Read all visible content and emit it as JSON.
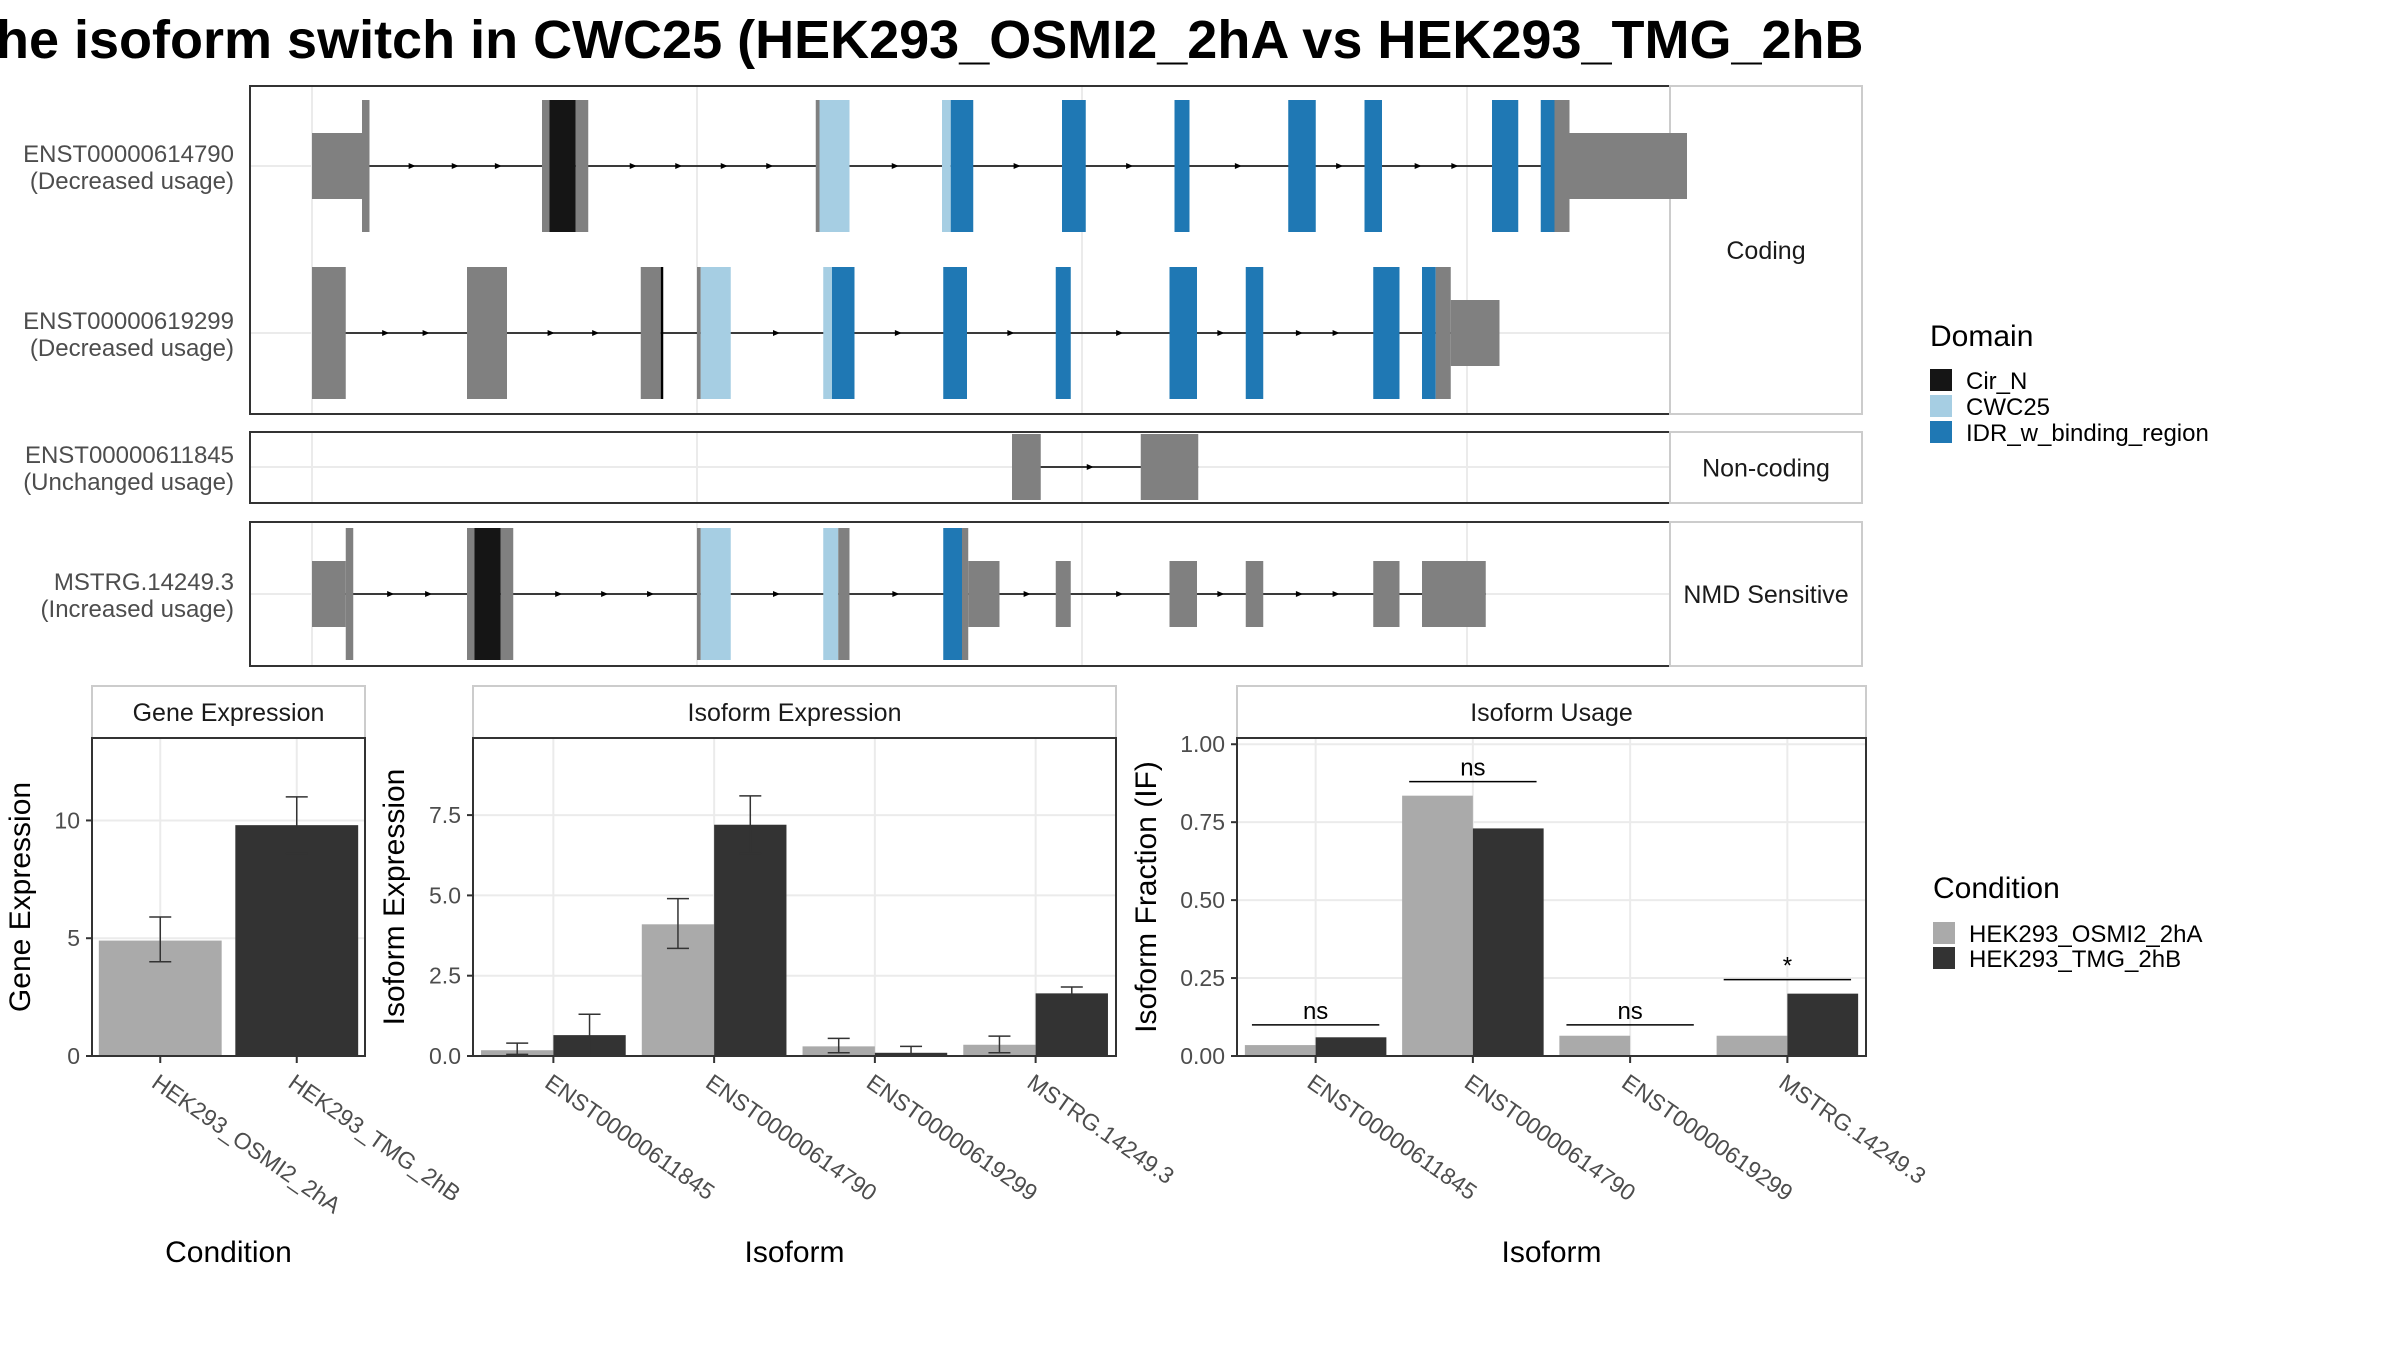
{
  "title": "he isoform switch in CWC25 (HEK293_OSMI2_2hA vs HEK293_TMG_2hB",
  "colors": {
    "cir_n": "#151515",
    "cwc25": "#a6cee3",
    "idr": "#1f78b4",
    "exon": "#808080",
    "cond_a": "#aaaaaa",
    "cond_b": "#333333",
    "strip_bg": "#ffffff",
    "panel_border": "#333333",
    "grid": "#ebebeb",
    "axis_text": "#4d4d4d"
  },
  "legends": {
    "domain": {
      "title": "Domain",
      "items": [
        {
          "label": "Cir_N",
          "color": "#151515"
        },
        {
          "label": "CWC25",
          "color": "#a6cee3"
        },
        {
          "label": "IDR_w_binding_region",
          "color": "#1f78b4"
        }
      ]
    },
    "condition": {
      "title": "Condition",
      "items": [
        {
          "label": "HEK293_OSMI2_2hA",
          "color": "#aaaaaa"
        },
        {
          "label": "HEK293_TMG_2hB",
          "color": "#333333"
        }
      ]
    }
  },
  "chart_data": [
    {
      "type": "gene-structure",
      "groups": [
        {
          "label": "Coding",
          "transcripts": [
            {
              "id": "ENST00000614790",
              "usage": "(Decreased usage)",
              "exons": [
                {
                  "type": "utr",
                  "start": 0.0,
                  "end": 0.04
                },
                {
                  "type": "cds",
                  "start": 0.04,
                  "end": 0.046
                },
                {
                  "type": "cds",
                  "start": 0.184,
                  "end": 0.19
                },
                {
                  "type": "dom",
                  "domain": "Cir_N",
                  "start": 0.19,
                  "end": 0.211
                },
                {
                  "type": "cds",
                  "start": 0.211,
                  "end": 0.221
                },
                {
                  "type": "cds",
                  "start": 0.403,
                  "end": 0.406
                },
                {
                  "type": "dom",
                  "domain": "CWC25",
                  "start": 0.406,
                  "end": 0.43
                },
                {
                  "type": "dom",
                  "domain": "CWC25",
                  "start": 0.504,
                  "end": 0.511
                },
                {
                  "type": "dom",
                  "domain": "IDR_w_binding_region",
                  "start": 0.511,
                  "end": 0.529
                },
                {
                  "type": "dom",
                  "domain": "IDR_w_binding_region",
                  "start": 0.6,
                  "end": 0.619
                },
                {
                  "type": "dom",
                  "domain": "IDR_w_binding_region",
                  "start": 0.69,
                  "end": 0.702
                },
                {
                  "type": "dom",
                  "domain": "IDR_w_binding_region",
                  "start": 0.781,
                  "end": 0.803
                },
                {
                  "type": "dom",
                  "domain": "IDR_w_binding_region",
                  "start": 0.842,
                  "end": 0.856
                },
                {
                  "type": "dom",
                  "domain": "IDR_w_binding_region",
                  "start": 0.944,
                  "end": 0.965
                },
                {
                  "type": "dom",
                  "domain": "IDR_w_binding_region",
                  "start": 0.983,
                  "end": 0.994
                },
                {
                  "type": "cds",
                  "start": 0.994,
                  "end": 1.006
                },
                {
                  "type": "utr",
                  "start": 1.006,
                  "end": 1.1
                }
              ]
            },
            {
              "id": "ENST00000619299",
              "usage": "(Decreased usage)",
              "exons": [
                {
                  "type": "cds",
                  "start": 0.0,
                  "end": 0.027
                },
                {
                  "type": "cds",
                  "start": 0.124,
                  "end": 0.156
                },
                {
                  "type": "cds",
                  "start": 0.263,
                  "end": 0.279
                },
                {
                  "type": "line",
                  "start": 0.279,
                  "end": 0.281
                },
                {
                  "type": "cds",
                  "start": 0.308,
                  "end": 0.311
                },
                {
                  "type": "dom",
                  "domain": "CWC25",
                  "start": 0.311,
                  "end": 0.335
                },
                {
                  "type": "dom",
                  "domain": "CWC25",
                  "start": 0.409,
                  "end": 0.416
                },
                {
                  "type": "dom",
                  "domain": "IDR_w_binding_region",
                  "start": 0.416,
                  "end": 0.434
                },
                {
                  "type": "dom",
                  "domain": "IDR_w_binding_region",
                  "start": 0.505,
                  "end": 0.524
                },
                {
                  "type": "dom",
                  "domain": "IDR_w_binding_region",
                  "start": 0.595,
                  "end": 0.607
                },
                {
                  "type": "dom",
                  "domain": "IDR_w_binding_region",
                  "start": 0.686,
                  "end": 0.708
                },
                {
                  "type": "dom",
                  "domain": "IDR_w_binding_region",
                  "start": 0.747,
                  "end": 0.761
                },
                {
                  "type": "dom",
                  "domain": "IDR_w_binding_region",
                  "start": 0.849,
                  "end": 0.87
                },
                {
                  "type": "dom",
                  "domain": "IDR_w_binding_region",
                  "start": 0.888,
                  "end": 0.899
                },
                {
                  "type": "cds",
                  "start": 0.899,
                  "end": 0.911
                },
                {
                  "type": "utr",
                  "start": 0.911,
                  "end": 0.95
                }
              ]
            }
          ]
        },
        {
          "label": "Non-coding",
          "transcripts": [
            {
              "id": "ENST00000611845",
              "usage": "(Unchanged usage)",
              "exons": [
                {
                  "type": "cds",
                  "start": 0.56,
                  "end": 0.583
                },
                {
                  "type": "cds",
                  "start": 0.663,
                  "end": 0.709
                }
              ]
            }
          ]
        },
        {
          "label": "NMD Sensitive",
          "transcripts": [
            {
              "id": "MSTRG.14249.3",
              "usage": "(Increased usage)",
              "exons": [
                {
                  "type": "utr",
                  "start": 0.0,
                  "end": 0.027
                },
                {
                  "type": "cds",
                  "start": 0.027,
                  "end": 0.033
                },
                {
                  "type": "cds",
                  "start": 0.124,
                  "end": 0.13
                },
                {
                  "type": "dom",
                  "domain": "Cir_N",
                  "start": 0.13,
                  "end": 0.151
                },
                {
                  "type": "cds",
                  "start": 0.151,
                  "end": 0.161
                },
                {
                  "type": "cds",
                  "start": 0.308,
                  "end": 0.311
                },
                {
                  "type": "dom",
                  "domain": "CWC25",
                  "start": 0.311,
                  "end": 0.335
                },
                {
                  "type": "dom",
                  "domain": "CWC25",
                  "start": 0.409,
                  "end": 0.421
                },
                {
                  "type": "cds",
                  "start": 0.421,
                  "end": 0.43
                },
                {
                  "type": "dom",
                  "domain": "IDR_w_binding_region",
                  "start": 0.505,
                  "end": 0.52
                },
                {
                  "type": "cds",
                  "start": 0.52,
                  "end": 0.525
                },
                {
                  "type": "utr",
                  "start": 0.525,
                  "end": 0.55
                },
                {
                  "type": "utr",
                  "start": 0.595,
                  "end": 0.607
                },
                {
                  "type": "utr",
                  "start": 0.686,
                  "end": 0.708
                },
                {
                  "type": "utr",
                  "start": 0.747,
                  "end": 0.761
                },
                {
                  "type": "utr",
                  "start": 0.849,
                  "end": 0.87
                },
                {
                  "type": "utr",
                  "start": 0.888,
                  "end": 0.939
                }
              ]
            }
          ]
        }
      ]
    },
    {
      "type": "bar",
      "title": "Gene Expression",
      "xlabel": "Condition",
      "ylabel": "Gene Expression",
      "ylim": [
        0,
        13.5
      ],
      "yticks": [
        0,
        5,
        10
      ],
      "categories": [
        "HEK293_OSMI2_2hA",
        "HEK293_TMG_2hB"
      ],
      "values": [
        4.9,
        9.8
      ],
      "err_low": [
        4.0,
        8.6
      ],
      "err_high": [
        5.9,
        11.0
      ],
      "colors": [
        "#aaaaaa",
        "#333333"
      ]
    },
    {
      "type": "bar",
      "title": "Isoform Expression",
      "xlabel": "Isoform",
      "ylabel": "Isoform Expression",
      "ylim": [
        0,
        9.9
      ],
      "yticks": [
        "0.0",
        "2.5",
        "5.0",
        "7.5"
      ],
      "categories": [
        "ENST00000611845",
        "ENST00000614790",
        "ENST00000619299",
        "MSTRG.14249.3"
      ],
      "series": [
        {
          "name": "HEK293_OSMI2_2hA",
          "values": [
            0.18,
            4.1,
            0.3,
            0.35
          ],
          "err_low": [
            0.05,
            3.35,
            0.1,
            0.1
          ],
          "err_high": [
            0.4,
            4.9,
            0.55,
            0.62
          ]
        },
        {
          "name": "HEK293_TMG_2hB",
          "values": [
            0.65,
            7.2,
            0.1,
            1.95
          ],
          "err_low": [
            0.0,
            6.3,
            0.0,
            1.75
          ],
          "err_high": [
            1.3,
            8.1,
            0.3,
            2.15
          ]
        }
      ]
    },
    {
      "type": "bar",
      "title": "Isoform Usage",
      "xlabel": "Isoform",
      "ylabel": "Isoform Fraction (IF)",
      "ylim": [
        0,
        1.02
      ],
      "yticks": [
        "0.00",
        "0.25",
        "0.50",
        "0.75",
        "1.00"
      ],
      "categories": [
        "ENST00000611845",
        "ENST00000614790",
        "ENST00000619299",
        "MSTRG.14249.3"
      ],
      "series": [
        {
          "name": "HEK293_OSMI2_2hA",
          "values": [
            0.035,
            0.835,
            0.065,
            0.065
          ]
        },
        {
          "name": "HEK293_TMG_2hB",
          "values": [
            0.06,
            0.73,
            0.003,
            0.2
          ]
        }
      ],
      "significance": [
        {
          "label": "ns",
          "y": 0.1
        },
        {
          "label": "ns",
          "y": 0.88
        },
        {
          "label": "ns",
          "y": 0.1
        },
        {
          "label": "*",
          "y": 0.245
        }
      ]
    }
  ]
}
